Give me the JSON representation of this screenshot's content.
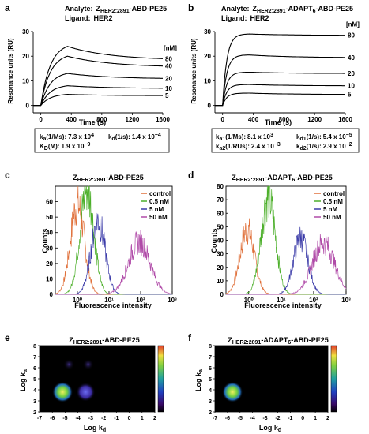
{
  "panels": {
    "a": {
      "letter": "a",
      "analyte_label": "Analyte:",
      "analyte_prefix": "Z",
      "analyte_sub": "HER2:2891",
      "analyte_suffix": "-ABD-PE25",
      "ligand_label": "Ligand:",
      "ligand": "HER2",
      "kinetics": [
        {
          "label": "k",
          "sub": "a",
          "unit": "(1/Ms):",
          "mant": "7.3 x 10",
          "exp": "4"
        },
        {
          "label": "k",
          "sub": "d",
          "unit": "(1/s):",
          "mant": "1.4 x 10",
          "exp": "−4"
        },
        {
          "label": "K",
          "sub": "D",
          "unit": "(M):",
          "mant": "1.9 x 10",
          "exp": "−9"
        }
      ]
    },
    "b": {
      "letter": "b",
      "analyte_label": "Analyte:",
      "analyte_prefix": "Z",
      "analyte_sub": "HER2:2891",
      "analyte_suffix": "-ADAPT",
      "analyte_sub2": "6",
      "analyte_suffix2": "-ABD-PE25",
      "ligand_label": "Ligand:",
      "ligand": "HER2",
      "kinetics": [
        {
          "label": "k",
          "sub": "a1",
          "unit": "(1/Ms):",
          "mant": "8.1 x 10",
          "exp": "3"
        },
        {
          "label": "k",
          "sub": "d1",
          "unit": "(1/s):",
          "mant": "5.4 x 10",
          "exp": "−5"
        },
        {
          "label": "k",
          "sub": "a2",
          "unit": "(1/RUs):",
          "mant": "2.4 x 10",
          "exp": "−3"
        },
        {
          "label": "k",
          "sub": "d2",
          "unit": "(1/s):",
          "mant": "2.9 x 10",
          "exp": "−2"
        }
      ]
    },
    "c": {
      "letter": "c",
      "title_prefix": "Z",
      "title_sub": "HER2:2891",
      "title_suffix": "-ABD-PE25"
    },
    "d": {
      "letter": "d",
      "title_prefix": "Z",
      "title_sub": "HER2:2891",
      "title_suffix": "-ADAPT",
      "title_sub2": "6",
      "title_suffix2": "-ABD-PE25"
    },
    "e": {
      "letter": "e",
      "title_prefix": "Z",
      "title_sub": "HER2:2891",
      "title_suffix": "-ABD-PE25"
    },
    "f": {
      "letter": "f",
      "title_prefix": "Z",
      "title_sub": "HER2:2891",
      "title_suffix": "-ADAPT",
      "title_sub2": "6",
      "title_suffix2": "-ABD-PE25"
    }
  },
  "colors": {
    "control": "#e0703a",
    "c05": "#4caf2a",
    "c5": "#3a3aa8",
    "c50": "#b04aa8",
    "heat_bg": "#000000"
  },
  "chart_data": [
    {
      "id": "a",
      "type": "line",
      "xlabel": "Time (s)",
      "ylabel": "Resonance units (RU)",
      "xlim": [
        -100,
        1600
      ],
      "ylim": [
        -3,
        30
      ],
      "xticks": [
        "0",
        "400",
        "800",
        "1200",
        "1600"
      ],
      "yticks": [
        "0",
        "10",
        "20",
        "30"
      ],
      "legend_title": "[nM]",
      "series": [
        {
          "name": "80",
          "plateau": 24,
          "end": 19
        },
        {
          "name": "40",
          "plateau": 20,
          "end": 16
        },
        {
          "name": "20",
          "plateau": 13,
          "end": 11
        },
        {
          "name": "10",
          "plateau": 8,
          "end": 7
        },
        {
          "name": "5",
          "plateau": 4.5,
          "end": 4
        }
      ],
      "injection_end": 350
    },
    {
      "id": "b",
      "type": "line",
      "xlabel": "Time (s)",
      "ylabel": "Resonance units (RU)",
      "xlim": [
        -100,
        1600
      ],
      "ylim": [
        -3,
        30
      ],
      "xticks": [
        "0",
        "400",
        "800",
        "1200",
        "1600"
      ],
      "yticks": [
        "0",
        "10",
        "20",
        "30"
      ],
      "legend_title": "[nM]",
      "series": [
        {
          "name": "80",
          "plateau": 29,
          "end": 28.5
        },
        {
          "name": "40",
          "plateau": 20.5,
          "end": 19.5
        },
        {
          "name": "20",
          "plateau": 13.5,
          "end": 13
        },
        {
          "name": "10",
          "plateau": 8.5,
          "end": 8
        },
        {
          "name": "5",
          "plateau": 5,
          "end": 4.5
        }
      ],
      "injection_end": 350
    },
    {
      "id": "c",
      "type": "area",
      "xlabel": "Fluorescence intensity",
      "ylabel": "Counts",
      "xscale": "log",
      "xlim": [
        0.2,
        1000
      ],
      "ylim": [
        0,
        70
      ],
      "xticks": [
        "10⁰",
        "10¹",
        "10²",
        "10³"
      ],
      "yticks": [
        "0",
        "10",
        "20",
        "30",
        "40",
        "50",
        "60"
      ],
      "series": [
        {
          "name": "control",
          "peak": 1.0,
          "height": 58
        },
        {
          "name": "0.5 nM",
          "peak": 2.0,
          "height": 68
        },
        {
          "name": "5 nM",
          "peak": 4.5,
          "height": 48
        },
        {
          "name": "50 nM",
          "peak": 90,
          "height": 34
        }
      ]
    },
    {
      "id": "d",
      "type": "area",
      "xlabel": "Fluorescence intensity",
      "ylabel": "Counts",
      "xscale": "log",
      "xlim": [
        0.2,
        1000
      ],
      "ylim": [
        0,
        80
      ],
      "xticks": [
        "10⁰",
        "10¹",
        "10²",
        "10³"
      ],
      "yticks": [
        "0",
        "10",
        "20",
        "30",
        "40",
        "50",
        "60",
        "70",
        "80"
      ],
      "series": [
        {
          "name": "control",
          "peak": 0.9,
          "height": 48
        },
        {
          "name": "0.5 nM",
          "peak": 4,
          "height": 72
        },
        {
          "name": "5 nM",
          "peak": 40,
          "height": 42
        },
        {
          "name": "50 nM",
          "peak": 200,
          "height": 38
        }
      ]
    },
    {
      "id": "e",
      "type": "heatmap",
      "xlabel": "Log k",
      "xlabel_sub": "d",
      "ylabel": "Log k",
      "ylabel_sub": "a",
      "xlim": [
        -7,
        2
      ],
      "ylim": [
        2,
        8
      ],
      "xticks": [
        "-7",
        "-6",
        "-5",
        "-4",
        "-3",
        "-2",
        "-1",
        "0",
        "1",
        "2"
      ],
      "yticks": [
        "2",
        "3",
        "4",
        "5",
        "6",
        "7",
        "8"
      ],
      "spots": [
        {
          "log_kd": -5.2,
          "log_ka": 3.8,
          "intensity": 1.0
        },
        {
          "log_kd": -3.4,
          "log_ka": 3.8,
          "intensity": 0.45
        },
        {
          "log_kd": -4.7,
          "log_ka": 6.3,
          "intensity": 0.15
        },
        {
          "log_kd": -3.2,
          "log_ka": 6.3,
          "intensity": 0.1
        }
      ]
    },
    {
      "id": "f",
      "type": "heatmap",
      "xlabel": "Log k",
      "xlabel_sub": "d",
      "ylabel": "Log k",
      "ylabel_sub": "a",
      "xlim": [
        -7,
        2
      ],
      "ylim": [
        2,
        8
      ],
      "xticks": [
        "-7",
        "-6",
        "-5",
        "-4",
        "-3",
        "-2",
        "-1",
        "0",
        "1",
        "2"
      ],
      "yticks": [
        "2",
        "3",
        "4",
        "5",
        "6",
        "7",
        "8"
      ],
      "spots": [
        {
          "log_kd": -5.6,
          "log_ka": 3.8,
          "intensity": 1.0
        }
      ]
    }
  ]
}
